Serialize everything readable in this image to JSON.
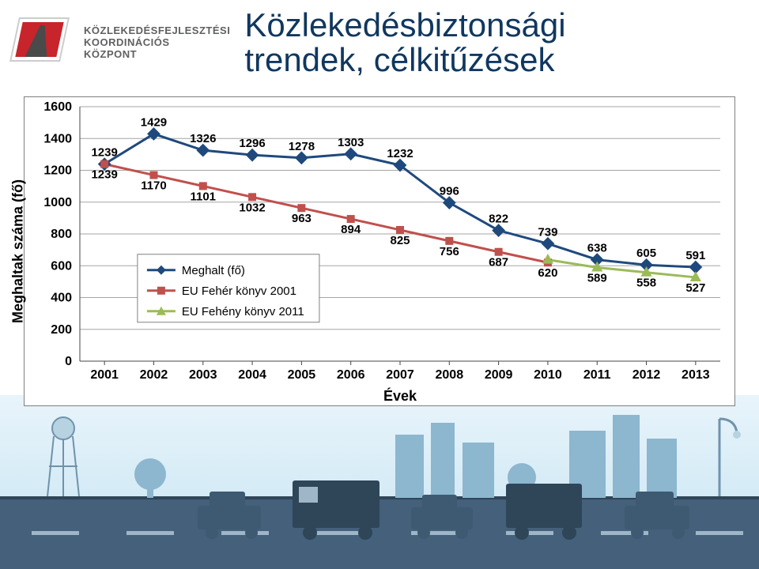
{
  "org": {
    "line1": "KÖZLEKEDÉSFEJLESZTÉSI",
    "line2": "KOORDINÁCIÓS",
    "line3": "KÖZPONT"
  },
  "title_line1": "Közlekedésbiztonsági",
  "title_line2": "trendek, célkitűzések",
  "chart": {
    "type": "line",
    "x_label": "Évek",
    "y_label": "Meghaltak száma (fő)",
    "categories": [
      "2001",
      "2002",
      "2003",
      "2004",
      "2005",
      "2006",
      "2007",
      "2008",
      "2009",
      "2010",
      "2011",
      "2012",
      "2013"
    ],
    "ylim": [
      0,
      1600
    ],
    "ytick_step": 200,
    "grid_color": "#a6a6a6",
    "background_color": "#ffffff",
    "axis_font_size": 16,
    "value_font_size": 13,
    "series": [
      {
        "name": "Meghalt (fő)",
        "color": "#1f497d",
        "marker": "diamond",
        "marker_size": 10,
        "line_width": 3,
        "values": [
          1239,
          1429,
          1326,
          1296,
          1278,
          1303,
          1232,
          996,
          822,
          739,
          638,
          605,
          591
        ],
        "label_position": "above"
      },
      {
        "name": "EU Fehér könyv 2001",
        "color": "#c0504d",
        "marker": "square",
        "marker_size": 9,
        "line_width": 3,
        "values": [
          1239,
          1170,
          1101,
          1032,
          963,
          894,
          825,
          756,
          687,
          620,
          null,
          null,
          null
        ],
        "label_position": "below"
      },
      {
        "name": "EU Fehény könyv 2011",
        "color": "#9bbb59",
        "marker": "triangle",
        "marker_size": 10,
        "line_width": 3,
        "values": [
          null,
          null,
          null,
          null,
          null,
          null,
          null,
          null,
          null,
          638,
          589,
          558,
          527
        ],
        "extra_start_link": {
          "from_series": 1,
          "from_index": 9
        },
        "label_position": "below"
      }
    ],
    "legend_position": "left-inside",
    "label_overrides": {
      "s2_v9": "638"
    }
  }
}
